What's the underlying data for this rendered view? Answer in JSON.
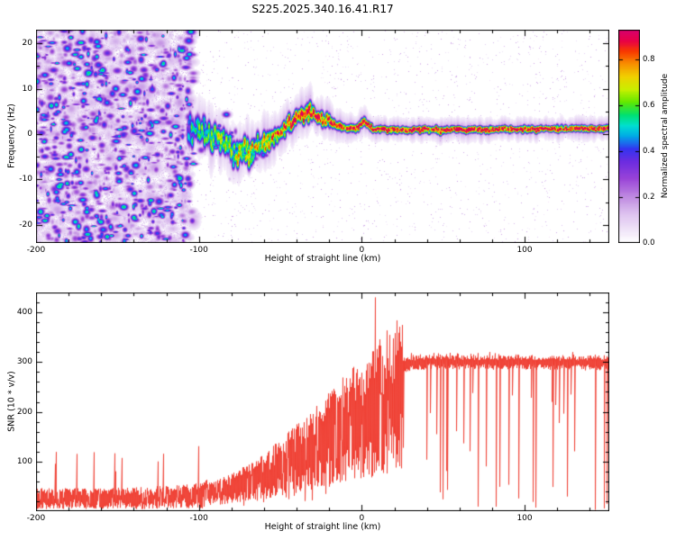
{
  "title": "S225.2025.340.16.41.R17",
  "colors": {
    "background": "#ffffff",
    "axis": "#000000",
    "snr_line": "#ef382c"
  },
  "colormap_stops": [
    [
      0.0,
      "#ffffff"
    ],
    [
      0.06,
      "#f0e4f8"
    ],
    [
      0.14,
      "#dcc0ef"
    ],
    [
      0.22,
      "#bd86e0"
    ],
    [
      0.3,
      "#9a44d8"
    ],
    [
      0.38,
      "#6c2ce0"
    ],
    [
      0.44,
      "#3434f0"
    ],
    [
      0.5,
      "#00a8e8"
    ],
    [
      0.55,
      "#00e0d0"
    ],
    [
      0.6,
      "#00e070"
    ],
    [
      0.66,
      "#60e800"
    ],
    [
      0.72,
      "#c8f000"
    ],
    [
      0.78,
      "#f0d000"
    ],
    [
      0.84,
      "#f89000"
    ],
    [
      0.9,
      "#f83800"
    ],
    [
      0.95,
      "#e80048"
    ],
    [
      1.0,
      "#d8006c"
    ]
  ],
  "chart_data": [
    {
      "type": "heatmap",
      "title": "S225.2025.340.16.41.R17",
      "xlabel": "Height of straight line (km)",
      "ylabel": "Frequency (Hz)",
      "xlim": [
        -200,
        152
      ],
      "ylim": [
        -24,
        23
      ],
      "xticks": [
        -200,
        -100,
        0,
        100
      ],
      "xtick_minor_step": 20,
      "yticks": [
        20,
        10,
        0,
        -10,
        -20
      ],
      "ytick_minor_step": 5,
      "grid": false,
      "colorbar": {
        "label": "Normalized spectral amplitude",
        "ticks": [
          0.0,
          0.2,
          0.4,
          0.6,
          0.8
        ],
        "vmax": 0.93
      },
      "noise": {
        "x_end_km": -105,
        "blob_count": 1600,
        "big_faint_count": 220,
        "amp_max": 0.58
      },
      "ridge_points": [
        [
          -107,
          0.3,
          0.5,
          1.2
        ],
        [
          -101,
          1.0,
          0.55,
          1.1
        ],
        [
          -96,
          0.4,
          0.6,
          1.1
        ],
        [
          -90,
          -0.9,
          0.6,
          1.1
        ],
        [
          -84,
          -2.0,
          0.65,
          1.0
        ],
        [
          -79,
          -3.2,
          0.65,
          1.0
        ],
        [
          -74,
          -4.0,
          0.7,
          1.0
        ],
        [
          -69,
          -3.6,
          0.7,
          0.95
        ],
        [
          -64,
          -2.6,
          0.72,
          0.9
        ],
        [
          -59,
          -1.6,
          0.75,
          0.85
        ],
        [
          -54,
          -0.6,
          0.78,
          0.8
        ],
        [
          -49,
          0.8,
          0.8,
          0.75
        ],
        [
          -44,
          2.2,
          0.82,
          0.75
        ],
        [
          -39,
          3.7,
          0.85,
          0.75
        ],
        [
          -34,
          4.9,
          0.85,
          0.8
        ],
        [
          -29,
          4.5,
          0.85,
          0.75
        ],
        [
          -24,
          3.4,
          0.82,
          0.7
        ],
        [
          -19,
          2.4,
          0.82,
          0.6
        ],
        [
          -14,
          1.8,
          0.85,
          0.55
        ],
        [
          -9,
          1.4,
          0.88,
          0.5
        ],
        [
          -4,
          1.3,
          0.9,
          0.5
        ],
        [
          -1,
          2.4,
          0.9,
          0.55
        ],
        [
          1,
          2.9,
          0.9,
          0.55
        ],
        [
          3,
          2.2,
          0.9,
          0.5
        ],
        [
          6,
          1.3,
          0.92,
          0.42
        ],
        [
          12,
          1.1,
          0.92,
          0.4
        ],
        [
          30,
          1.0,
          0.92,
          0.4
        ],
        [
          60,
          1.1,
          0.92,
          0.4
        ],
        [
          90,
          1.1,
          0.92,
          0.4
        ],
        [
          120,
          1.2,
          0.92,
          0.4
        ],
        [
          152,
          1.4,
          0.92,
          0.4
        ]
      ]
    },
    {
      "type": "line",
      "xlabel": "Height of straight line (km)",
      "ylabel": "SNR (10 * v/v)",
      "xlim": [
        -200,
        152
      ],
      "ylim": [
        0,
        440
      ],
      "xticks": [
        -200,
        -100,
        0,
        100
      ],
      "xtick_minor_step": 20,
      "yticks": [
        100,
        200,
        300,
        400
      ],
      "ytick_minor_step": 20,
      "grid": false,
      "series": [
        {
          "name": "SNR",
          "color": "#ef382c",
          "envelope_points": [
            [
              -200,
              28
            ],
            [
              -160,
              28
            ],
            [
              -130,
              30
            ],
            [
              -110,
              32
            ],
            [
              -100,
              35
            ],
            [
              -90,
              42
            ],
            [
              -80,
              52
            ],
            [
              -70,
              65
            ],
            [
              -60,
              80
            ],
            [
              -50,
              100
            ],
            [
              -40,
              120
            ],
            [
              -30,
              140
            ],
            [
              -22,
              160
            ],
            [
              -15,
              175
            ],
            [
              -10,
              190
            ],
            [
              -5,
              200
            ],
            [
              0,
              205
            ],
            [
              5,
              215
            ],
            [
              10,
              235
            ],
            [
              15,
              250
            ],
            [
              20,
              270
            ],
            [
              25,
              290
            ],
            [
              30,
              300
            ],
            [
              40,
              302
            ],
            [
              150,
              300
            ]
          ],
          "spike": {
            "km": 8.3,
            "value": 430
          },
          "plateau": {
            "start_km": 25,
            "level": 300,
            "dropout_rate": 0.16,
            "dropout_min": 3
          }
        }
      ]
    }
  ]
}
